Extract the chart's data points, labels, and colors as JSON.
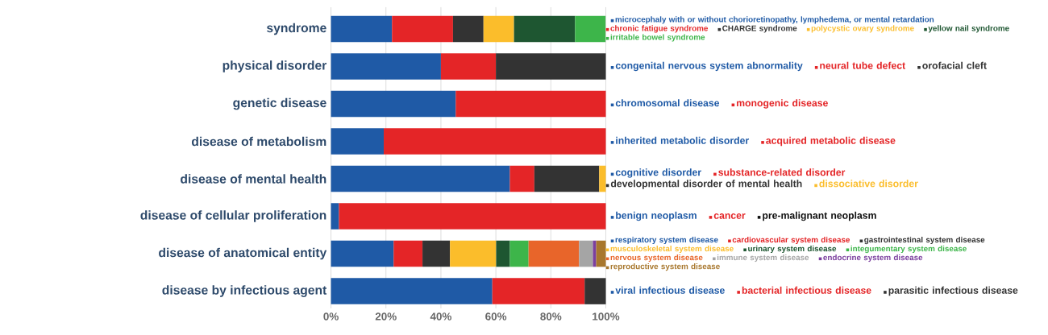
{
  "chart_data": {
    "type": "bar",
    "orientation": "horizontal",
    "stacked": true,
    "grid": "x",
    "legend": "right",
    "categories": [
      "syndrome",
      "physical disorder",
      "genetic disease",
      "disease of metabolism",
      "disease of mental health",
      "disease of cellular proliferation",
      "disease of anatomical entity",
      "disease by infectious agent"
    ],
    "xlim": [
      0,
      100
    ],
    "xticks": [
      {
        "value": 0,
        "label": "0%"
      },
      {
        "value": 20,
        "label": "20%"
      },
      {
        "value": 40,
        "label": "40%"
      },
      {
        "value": 60,
        "label": "60%"
      },
      {
        "value": 80,
        "label": "80%"
      },
      {
        "value": 100,
        "label": "100%"
      }
    ],
    "series": [
      {
        "name": "microcephaly with or without chorioretinopathy, lymphedema, or mental retardation",
        "color": "#1f5aa6",
        "values": [
          22.2,
          null,
          null,
          null,
          null,
          null,
          null,
          null
        ]
      },
      {
        "name": "chronic fatigue syndrome",
        "color": "#e42527",
        "values": [
          22.2,
          null,
          null,
          null,
          null,
          null,
          null,
          null
        ]
      },
      {
        "name": "CHARGE syndrome",
        "color": "#333333",
        "values": [
          11.1,
          null,
          null,
          null,
          null,
          null,
          null,
          null
        ]
      },
      {
        "name": "polycystic ovary syndrome",
        "color": "#fbbd2b",
        "values": [
          11.1,
          null,
          null,
          null,
          null,
          null,
          null,
          null
        ]
      },
      {
        "name": "yellow nail syndrome",
        "color": "#1e5631",
        "values": [
          22.2,
          null,
          null,
          null,
          null,
          null,
          null,
          null
        ]
      },
      {
        "name": "irritable bowel syndrome",
        "color": "#3db54a",
        "values": [
          11.1,
          null,
          null,
          null,
          null,
          null,
          null,
          null
        ]
      },
      {
        "name": "congenital nervous system abnormality",
        "color": "#1f5aa6",
        "values": [
          null,
          40,
          null,
          null,
          null,
          null,
          null,
          null
        ]
      },
      {
        "name": "neural tube defect",
        "color": "#e42527",
        "values": [
          null,
          20,
          null,
          null,
          null,
          null,
          null,
          null
        ]
      },
      {
        "name": "orofacial cleft",
        "color": "#333333",
        "values": [
          null,
          40,
          null,
          null,
          null,
          null,
          null,
          null
        ]
      },
      {
        "name": "chromosomal disease",
        "color": "#1f5aa6",
        "values": [
          null,
          null,
          45.4,
          null,
          null,
          null,
          null,
          null
        ]
      },
      {
        "name": "monogenic disease",
        "color": "#e42527",
        "values": [
          null,
          null,
          54.6,
          null,
          null,
          null,
          null,
          null
        ]
      },
      {
        "name": "inherited metabolic disorder",
        "color": "#1f5aa6",
        "values": [
          null,
          null,
          null,
          19.2,
          null,
          null,
          null,
          null
        ]
      },
      {
        "name": "acquired metabolic disease",
        "color": "#e42527",
        "values": [
          null,
          null,
          null,
          80.8,
          null,
          null,
          null,
          null
        ]
      },
      {
        "name": "cognitive disorder",
        "color": "#1f5aa6",
        "values": [
          null,
          null,
          null,
          null,
          65.1,
          null,
          null,
          null
        ]
      },
      {
        "name": "substance-related disorder",
        "color": "#e42527",
        "values": [
          null,
          null,
          null,
          null,
          8.9,
          null,
          null,
          null
        ]
      },
      {
        "name": "developmental disorder of mental health",
        "color": "#333333",
        "values": [
          null,
          null,
          null,
          null,
          23.6,
          null,
          null,
          null
        ]
      },
      {
        "name": "dissociative disorder",
        "color": "#fbbd2b",
        "values": [
          null,
          null,
          null,
          null,
          2.4,
          null,
          null,
          null
        ]
      },
      {
        "name": "benign neoplasm",
        "color": "#1f5aa6",
        "values": [
          null,
          null,
          null,
          null,
          null,
          2.9,
          null,
          null
        ]
      },
      {
        "name": "cancer",
        "color": "#e42527",
        "values": [
          null,
          null,
          null,
          null,
          null,
          97.1,
          null,
          null
        ]
      },
      {
        "name": "pre-malignant neoplasm",
        "color": "#111111",
        "values": [
          null,
          null,
          null,
          null,
          null,
          0,
          null,
          null
        ]
      },
      {
        "name": "respiratory system disease",
        "color": "#1f5aa6",
        "values": [
          null,
          null,
          null,
          null,
          null,
          null,
          22.8,
          null
        ]
      },
      {
        "name": "cardiovascular  system disease",
        "color": "#e42527",
        "values": [
          null,
          null,
          null,
          null,
          null,
          null,
          10.5,
          null
        ]
      },
      {
        "name": "gastrointestinal  system disease",
        "color": "#333333",
        "values": [
          null,
          null,
          null,
          null,
          null,
          null,
          10.0,
          null
        ]
      },
      {
        "name": "musculoskeletal  system disease",
        "color": "#fbbd2b",
        "values": [
          null,
          null,
          null,
          null,
          null,
          null,
          16.8,
          null
        ]
      },
      {
        "name": "urinary system disease",
        "color": "#1e5631",
        "values": [
          null,
          null,
          null,
          null,
          null,
          null,
          5.0,
          null
        ]
      },
      {
        "name": "integumentary system disease",
        "color": "#3db54a",
        "values": [
          null,
          null,
          null,
          null,
          null,
          null,
          6.8,
          null
        ]
      },
      {
        "name": "nervous system disease",
        "color": "#e8652a",
        "values": [
          null,
          null,
          null,
          null,
          null,
          null,
          18.4,
          null
        ]
      },
      {
        "name": "immune system disease",
        "color": "#a5a5a5",
        "values": [
          null,
          null,
          null,
          null,
          null,
          null,
          5.0,
          null
        ]
      },
      {
        "name": "endocrine system disease",
        "color": "#7b3f9e",
        "values": [
          null,
          null,
          null,
          null,
          null,
          null,
          1.2,
          null
        ]
      },
      {
        "name": "reproductive system disease",
        "color": "#a8772d",
        "values": [
          null,
          null,
          null,
          null,
          null,
          null,
          3.5,
          null
        ]
      },
      {
        "name": "viral infectious disease",
        "color": "#1f5aa6",
        "values": [
          null,
          null,
          null,
          null,
          null,
          null,
          null,
          58.7
        ]
      },
      {
        "name": "bacterial infectious disease",
        "color": "#e42527",
        "values": [
          null,
          null,
          null,
          null,
          null,
          null,
          null,
          33.6
        ]
      },
      {
        "name": "parasitic infectious disease",
        "color": "#333333",
        "values": [
          null,
          null,
          null,
          null,
          null,
          null,
          null,
          7.7
        ]
      }
    ]
  }
}
